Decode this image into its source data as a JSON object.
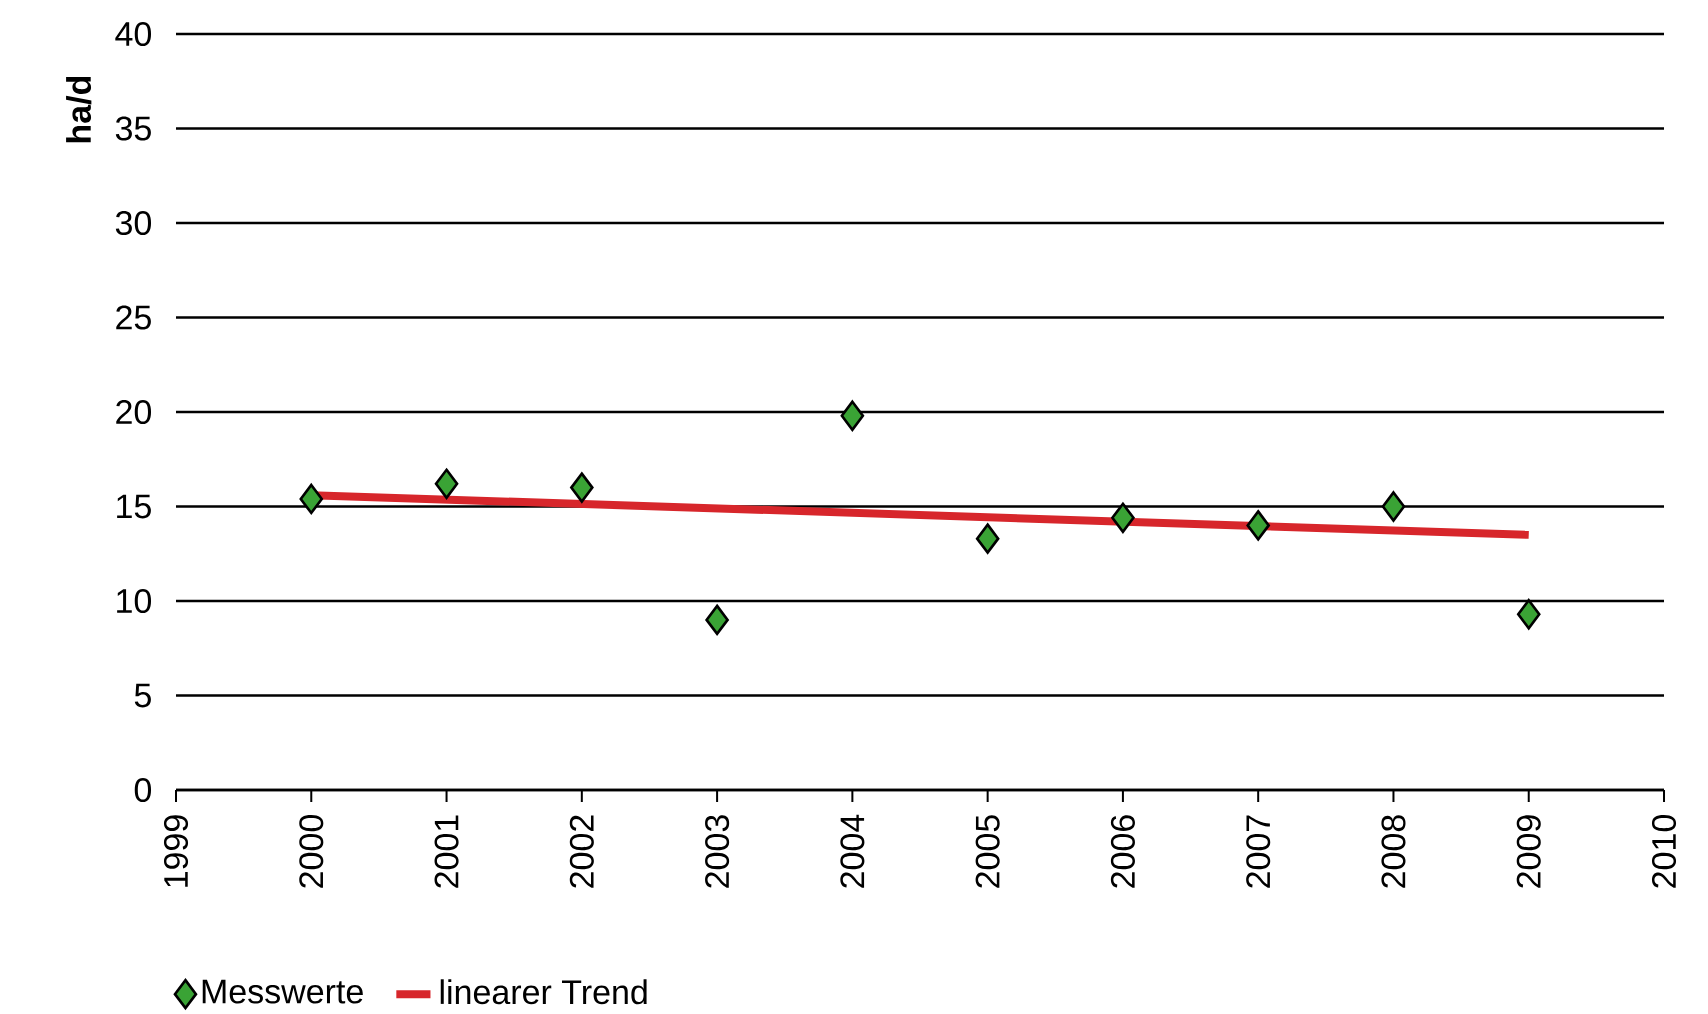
{
  "chart_data": {
    "type": "scatter",
    "ylabel": "ha/d",
    "xlim": [
      1999,
      2010
    ],
    "xticks": [
      1999,
      2000,
      2001,
      2002,
      2003,
      2004,
      2005,
      2006,
      2007,
      2008,
      2009,
      2010
    ],
    "ylim": [
      0,
      40
    ],
    "yticks": [
      0,
      5,
      10,
      15,
      20,
      25,
      30,
      35,
      40
    ],
    "grid": "y",
    "legend": "bottom left",
    "series": [
      {
        "name": "Messwerte",
        "marker": "diamond",
        "color": "#3aa335",
        "x": [
          2000,
          2001,
          2002,
          2003,
          2004,
          2005,
          2006,
          2007,
          2008,
          2009
        ],
        "values": [
          15.4,
          16.2,
          16.0,
          9.0,
          19.8,
          13.3,
          14.4,
          14.0,
          15.0,
          9.3
        ]
      },
      {
        "name": "linearer Trend",
        "type": "line",
        "marker": "none",
        "color": "#d7262b",
        "x": [
          2000,
          2009
        ],
        "values": [
          15.6,
          13.5
        ]
      }
    ]
  }
}
